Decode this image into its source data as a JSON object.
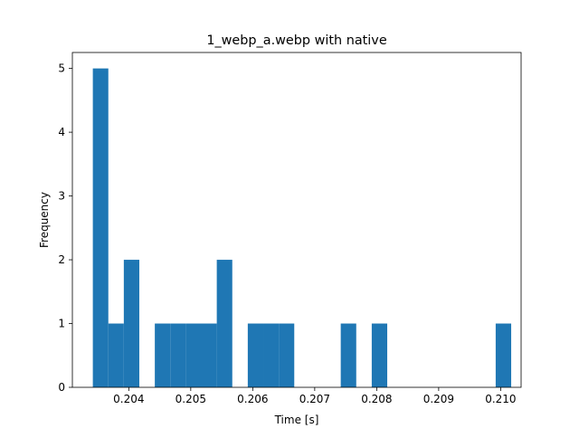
{
  "chart_data": {
    "type": "bar",
    "title": "1_webp_a.webp with native",
    "xlabel": "Time [s]",
    "ylabel": "Frequency",
    "xlim": [
      0.20309,
      0.21033
    ],
    "ylim": [
      0,
      5.25
    ],
    "xticks": [
      "0.204",
      "0.205",
      "0.206",
      "0.207",
      "0.208",
      "0.209",
      "0.210"
    ],
    "xtick_values": [
      0.204,
      0.205,
      0.206,
      0.207,
      0.208,
      0.209,
      0.21
    ],
    "yticks": [
      "0",
      "1",
      "2",
      "3",
      "4",
      "5"
    ],
    "ytick_values": [
      0,
      1,
      2,
      3,
      4,
      5
    ],
    "bin_start": 0.20342,
    "bin_width": 0.00025,
    "counts": [
      5,
      1,
      2,
      0,
      1,
      1,
      1,
      1,
      2,
      0,
      1,
      1,
      1,
      0,
      0,
      0,
      1,
      0,
      1,
      0,
      0,
      0,
      0,
      0,
      0,
      0,
      1
    ],
    "bar_color": "#1f77b4",
    "grid": false
  }
}
